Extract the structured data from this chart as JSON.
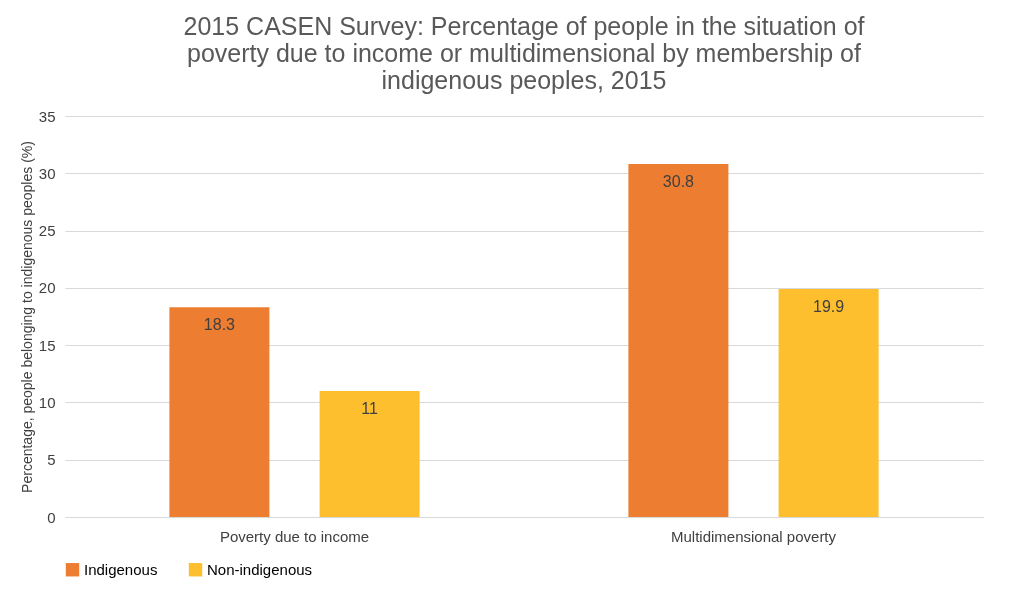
{
  "chart_data": {
    "type": "bar",
    "title": "2015 CASEN Survey: Percentage of people in the situation of poverty due to income or multidimensional by membership of indigenous peoples, 2015",
    "ylabel": "Percentage, people belonging to indigenous peoples (%)",
    "categories": [
      "Poverty due to income",
      "Multidimensional poverty"
    ],
    "series": [
      {
        "name": "Indigenous",
        "color": "#ed7d31",
        "values": [
          18.3,
          30.8
        ]
      },
      {
        "name": "Non-indigenous",
        "color": "#fdbf2d",
        "values": [
          11,
          19.9
        ]
      }
    ],
    "ylim": [
      0,
      35
    ],
    "yticks": [
      0,
      5,
      10,
      15,
      20,
      25,
      30,
      35
    ],
    "grid": "y",
    "legend": "bottom",
    "data_labels": true
  }
}
